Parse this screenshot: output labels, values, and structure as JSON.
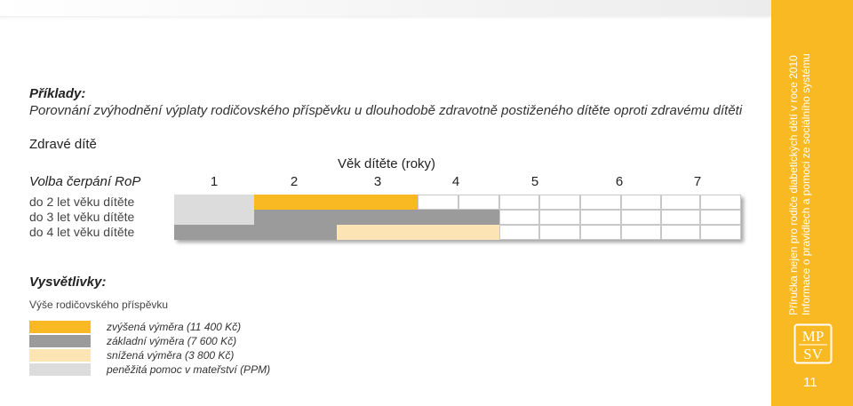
{
  "heading": "Příklady:",
  "subheading": "Porovnání zvýhodnění výplaty rodičovského příspěvku u dlouhodobě zdravotně postiženého dítěte oproti zdravému dítěti",
  "section_title": "Zdravé dítě",
  "age_header": "Věk dítěte (roky)",
  "choice_label": "Volba čerpání RoP",
  "ages": [
    "1",
    "2",
    "3",
    "4",
    "5",
    "6",
    "7"
  ],
  "rows": [
    {
      "label": "do 2 let věku dítěte",
      "cells": [
        "ppm",
        "zvysena",
        "zvysena",
        "",
        "",
        "",
        ""
      ]
    },
    {
      "label": "do 3 let věku dítěte",
      "cells": [
        "ppm",
        "zakladni",
        "zakladni",
        "zakladni",
        "",
        "",
        ""
      ]
    },
    {
      "label": "do 4 let věku dítěte",
      "cells": [
        "zakladni",
        "zakladni",
        "snizena",
        "snizena",
        "",
        "",
        ""
      ]
    }
  ],
  "legend": {
    "title": "Vysvětlivky:",
    "subtitle": "Výše rodičovského příspěvku",
    "items": [
      {
        "key": "zvysena",
        "label": "zvýšená výměra (11 400 Kč)",
        "color": "#f9b922"
      },
      {
        "key": "zakladni",
        "label": "základní výměra (7 600 Kč)",
        "color": "#9b9b9b"
      },
      {
        "key": "snizena",
        "label": "snížená výměra (3 800 Kč)",
        "color": "#fde4b4"
      },
      {
        "key": "ppm",
        "label": "peněžitá pomoc v mateřství (PPM)",
        "color": "#dcdcdc"
      }
    ]
  },
  "sidebar": {
    "line1": "Příručka nejen pro rodiče diabetických dětí v roce 2010",
    "line2": "Informace o pravidlech a pomoci ze sociálního systému",
    "logo_top": "MP",
    "logo_bottom": "SV",
    "page_number": "11",
    "color": "#f9b922"
  }
}
